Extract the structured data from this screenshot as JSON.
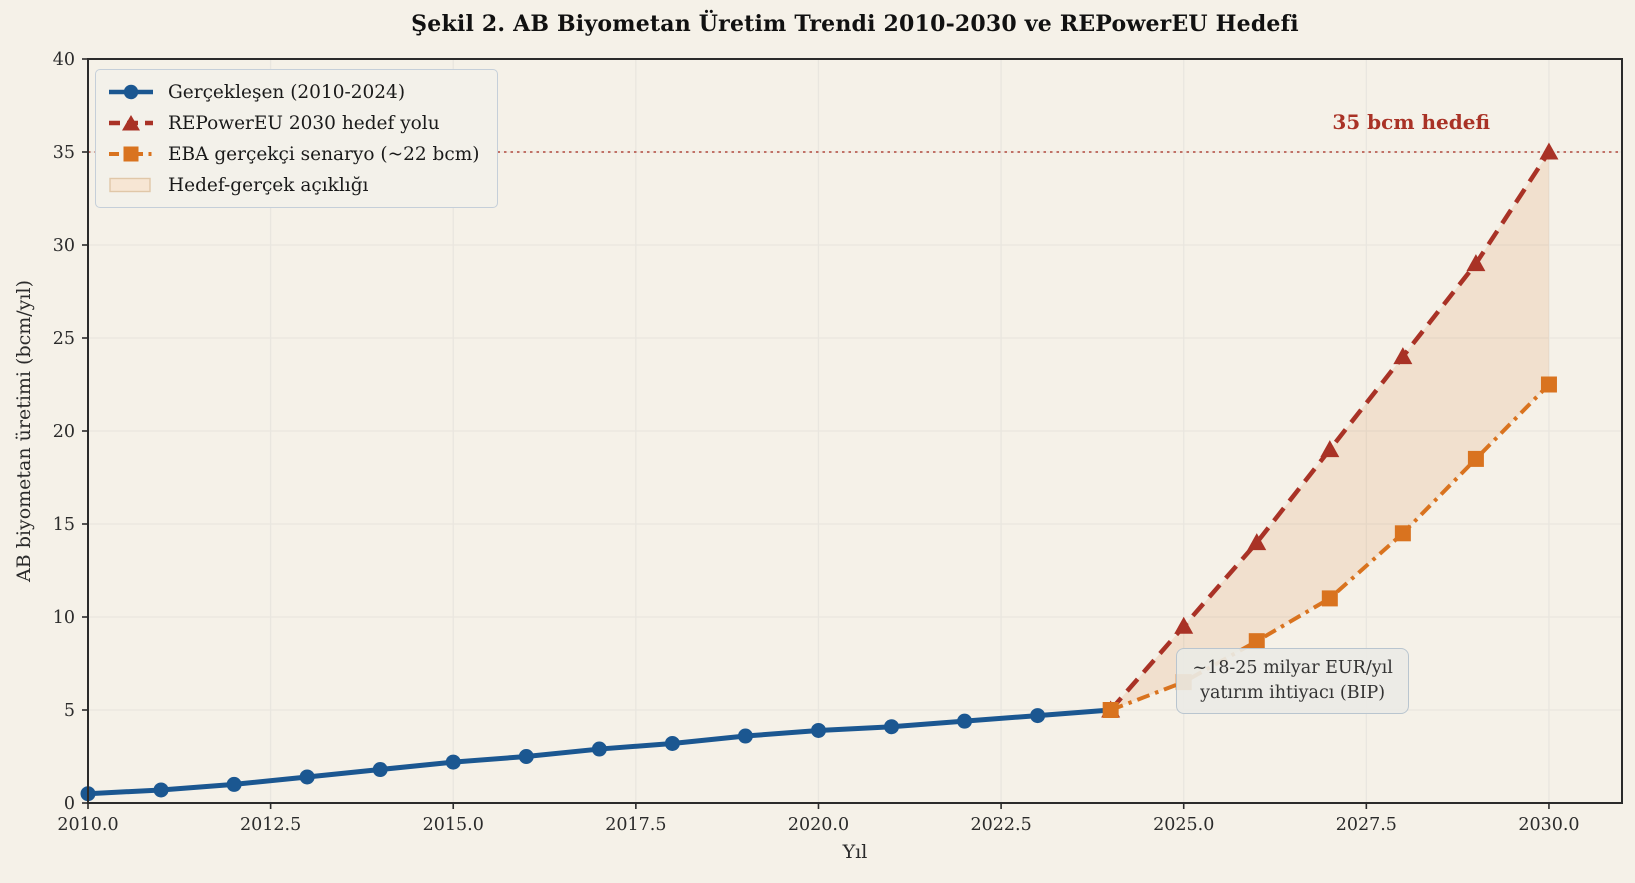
{
  "chart_data": {
    "type": "line",
    "title": "Şekil 2. AB Biyometan Üretim Trendi 2010-2030 ve REPowerEU Hedefi",
    "xlabel": "Yıl",
    "ylabel": "AB biyometan üretimi (bcm/yıl)",
    "xlim": [
      2010,
      2031
    ],
    "ylim": [
      0,
      40
    ],
    "grid": true,
    "legend_position": "upper left",
    "x_ticks": [
      2010,
      2012.5,
      2015,
      2017.5,
      2020,
      2022.5,
      2025,
      2027.5,
      2030
    ],
    "x_tick_labels": [
      "2010.0",
      "2012.5",
      "2015.0",
      "2017.5",
      "2020.0",
      "2022.5",
      "2025.0",
      "2027.5",
      "2030.0"
    ],
    "y_ticks": [
      0,
      5,
      10,
      15,
      20,
      25,
      30,
      35,
      40
    ],
    "y_tick_labels": [
      "0",
      "5",
      "10",
      "15",
      "20",
      "25",
      "30",
      "35",
      "40"
    ],
    "series": [
      {
        "name": "Gerçekleşen (2010-2024)",
        "color": "#1b5791",
        "marker": "circle",
        "line": "solid",
        "x": [
          2010,
          2011,
          2012,
          2013,
          2014,
          2015,
          2016,
          2017,
          2018,
          2019,
          2020,
          2021,
          2022,
          2023,
          2024
        ],
        "values": [
          0.5,
          0.7,
          1.0,
          1.4,
          1.8,
          2.2,
          2.5,
          2.9,
          3.2,
          3.6,
          3.9,
          4.1,
          4.4,
          4.7,
          5.0
        ]
      },
      {
        "name": "REPowerEU 2030 hedef yolu",
        "color": "#a93226",
        "marker": "triangle",
        "line": "dashed",
        "x": [
          2024,
          2025,
          2026,
          2027,
          2028,
          2029,
          2030
        ],
        "values": [
          5.0,
          9.5,
          14.0,
          19.0,
          24.0,
          29.0,
          35.0
        ]
      },
      {
        "name": "EBA gerçekçi senaryo (~22 bcm)",
        "color": "#d9731f",
        "marker": "square",
        "line": "dashdot",
        "x": [
          2024,
          2025,
          2026,
          2027,
          2028,
          2029,
          2030
        ],
        "values": [
          5.0,
          6.5,
          8.7,
          11.0,
          14.5,
          18.5,
          22.5
        ]
      }
    ],
    "gap_area": {
      "label": "Hedef-gerçek açıklığı",
      "upper_series": 1,
      "lower_series": 2,
      "fill_color": "rgba(217,115,31,0.13)",
      "swatch_fill": "#f7e6d4",
      "swatch_border": "#e0c7a8"
    },
    "target_line": {
      "value": 35,
      "label": "35 bcm hedefi",
      "color": "#a93226"
    },
    "annotations": [
      {
        "text_lines": [
          "~18-25 milyar EUR/yıl",
          "yatırım ihtiyacı (BIP)"
        ],
        "x": 2024.9,
        "y": 8.35
      }
    ]
  },
  "legend": {
    "items": [
      {
        "label": "Gerçekleşen (2010-2024)"
      },
      {
        "label": "REPowerEU 2030 hedef yolu"
      },
      {
        "label": "EBA gerçekçi senaryo (~22 bcm)"
      },
      {
        "label": "Hedef-gerçek açıklığı"
      }
    ]
  },
  "colors": {
    "background": "#f5f1e8",
    "grid": "#e9e6df",
    "spine": "#2b2b2b",
    "tick_text": "#2b2b2b"
  }
}
